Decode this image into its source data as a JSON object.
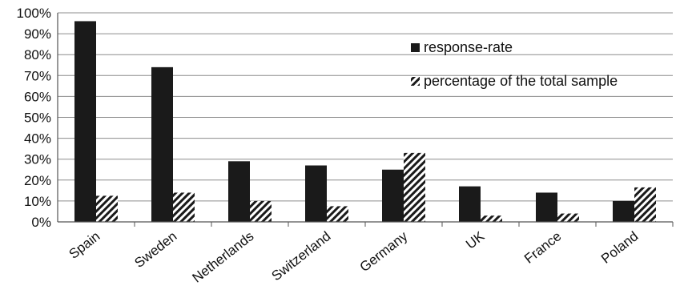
{
  "chart_data": {
    "type": "bar",
    "categories": [
      "Spain",
      "Sweden",
      "Netherlands",
      "Switzerland",
      "Germany",
      "UK",
      "France",
      "Poland"
    ],
    "series": [
      {
        "name": "response-rate",
        "values": [
          96,
          74,
          29,
          27,
          25,
          17,
          14,
          10
        ],
        "color": "#1a1a1a",
        "pattern": "solid"
      },
      {
        "name": "percentage of the total sample",
        "values": [
          12.5,
          14,
          10,
          7.5,
          33,
          3,
          4,
          16.5
        ],
        "color": "#1a1a1a",
        "pattern": "diagonal-hatch"
      }
    ],
    "title": "",
    "xlabel": "",
    "ylabel": "",
    "ylim": [
      0,
      100
    ],
    "yticks": [
      "0%",
      "10%",
      "20%",
      "30%",
      "40%",
      "50%",
      "60%",
      "70%",
      "80%",
      "90%",
      "100%"
    ],
    "grid": "horizontal",
    "legend_position": "top-right"
  }
}
